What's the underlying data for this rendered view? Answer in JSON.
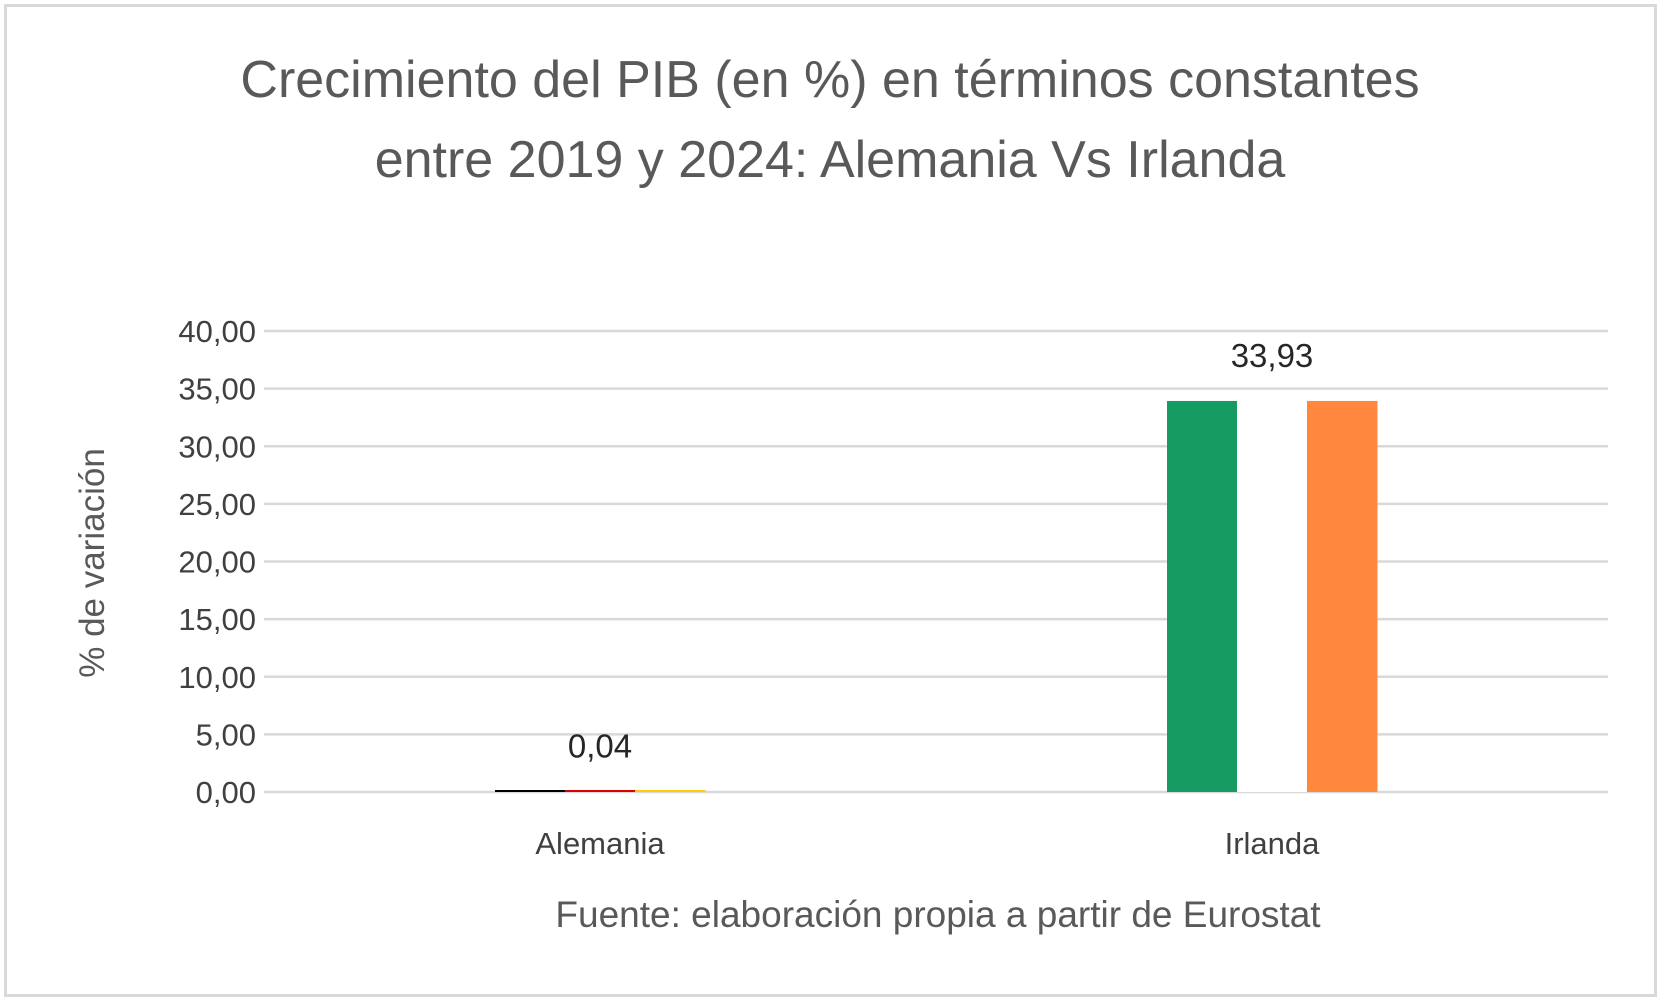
{
  "chart_data": {
    "type": "bar",
    "title": "Crecimiento del PIB (en %) en términos constantes entre 2019 y 2024: Alemania Vs Irlanda",
    "ylabel": "% de variación",
    "xlabel": "Fuente: elaboración propia a partir de Eurostat",
    "categories": [
      "Alemania",
      "Irlanda"
    ],
    "values": [
      0.04,
      33.93
    ],
    "value_labels": [
      "0,04",
      "33,93"
    ],
    "ylim": [
      0,
      40
    ],
    "y_ticks": [
      0,
      5,
      10,
      15,
      20,
      25,
      30,
      35,
      40
    ],
    "y_tick_labels": [
      "0,00",
      "5,00",
      "10,00",
      "15,00",
      "20,00",
      "25,00",
      "30,00",
      "35,00",
      "40,00"
    ],
    "grid": true,
    "legend": "none",
    "bar_fill": {
      "Alemania": [
        "#000000",
        "#dd0000",
        "#ffce00"
      ],
      "Irlanda": [
        "#169b62",
        "#ffffff",
        "#ff883e"
      ]
    },
    "colors": {
      "gridline": "#d9d9d9",
      "axis_line": "#d9d9d9"
    }
  }
}
